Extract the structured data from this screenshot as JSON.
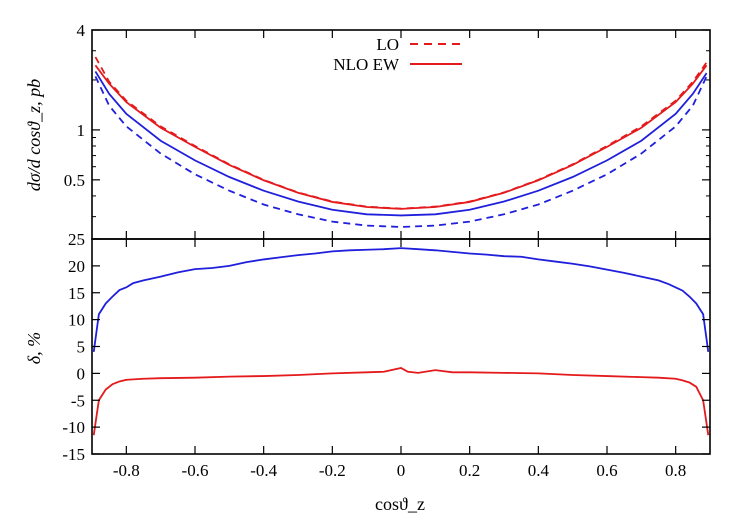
{
  "chart_data": [
    {
      "type": "line",
      "xlabel": "cosϑ_z",
      "ylabel": "dσ/d cosϑ_z, pb",
      "log_y": true,
      "xlim": [
        -0.9,
        0.9
      ],
      "ylim": [
        0.22,
        4
      ],
      "yticks": [
        {
          "v": 0.5,
          "label": "0.5"
        },
        {
          "v": 1,
          "label": "1"
        },
        {
          "v": 4,
          "label": "4"
        }
      ],
      "grid": false,
      "legend_position": "top-center",
      "legend": [
        {
          "label": "LO",
          "style": "dashed",
          "color": "#e41a1c"
        },
        {
          "label": "NLO EW",
          "style": "solid",
          "color": "#e41a1c"
        }
      ],
      "series": [
        {
          "color": "#e41a1c",
          "style": "dashed",
          "x": [
            -0.89,
            -0.85,
            -0.8,
            -0.7,
            -0.6,
            -0.5,
            -0.4,
            -0.3,
            -0.2,
            -0.1,
            0,
            0.1,
            0.2,
            0.3,
            0.4,
            0.5,
            0.6,
            0.7,
            0.8,
            0.85,
            0.89
          ],
          "y": [
            2.75,
            1.95,
            1.5,
            1.05,
            0.8,
            0.62,
            0.5,
            0.42,
            0.37,
            0.345,
            0.335,
            0.345,
            0.37,
            0.42,
            0.5,
            0.62,
            0.8,
            1.05,
            1.5,
            1.95,
            2.55
          ]
        },
        {
          "color": "#e41a1c",
          "style": "solid",
          "x": [
            -0.89,
            -0.85,
            -0.8,
            -0.7,
            -0.6,
            -0.5,
            -0.4,
            -0.3,
            -0.2,
            -0.1,
            0,
            0.1,
            0.2,
            0.3,
            0.4,
            0.5,
            0.6,
            0.7,
            0.8,
            0.85,
            0.89
          ],
          "y": [
            2.45,
            1.9,
            1.47,
            1.03,
            0.79,
            0.615,
            0.497,
            0.418,
            0.368,
            0.343,
            0.334,
            0.343,
            0.368,
            0.418,
            0.497,
            0.615,
            0.79,
            1.03,
            1.47,
            1.9,
            2.45
          ]
        },
        {
          "color": "#1f1fdc",
          "style": "dashed",
          "x": [
            -0.89,
            -0.85,
            -0.8,
            -0.7,
            -0.6,
            -0.5,
            -0.4,
            -0.3,
            -0.2,
            -0.1,
            0,
            0.1,
            0.2,
            0.3,
            0.4,
            0.5,
            0.6,
            0.7,
            0.8,
            0.85,
            0.89
          ],
          "y": [
            2.1,
            1.4,
            1.05,
            0.72,
            0.54,
            0.43,
            0.355,
            0.31,
            0.28,
            0.265,
            0.26,
            0.265,
            0.28,
            0.31,
            0.355,
            0.43,
            0.54,
            0.72,
            1.05,
            1.4,
            2.1
          ]
        },
        {
          "color": "#1f1fdc",
          "style": "solid",
          "x": [
            -0.89,
            -0.85,
            -0.8,
            -0.7,
            -0.6,
            -0.5,
            -0.4,
            -0.3,
            -0.2,
            -0.1,
            0,
            0.1,
            0.2,
            0.3,
            0.4,
            0.5,
            0.6,
            0.7,
            0.8,
            0.85,
            0.89
          ],
          "y": [
            2.25,
            1.65,
            1.25,
            0.86,
            0.655,
            0.52,
            0.43,
            0.37,
            0.33,
            0.31,
            0.305,
            0.31,
            0.33,
            0.37,
            0.43,
            0.52,
            0.655,
            0.86,
            1.25,
            1.65,
            2.2
          ]
        }
      ]
    },
    {
      "type": "line",
      "xlabel": "cosϑ_z",
      "ylabel": "δ, %",
      "xlim": [
        -0.9,
        0.9
      ],
      "ylim": [
        -15,
        25
      ],
      "xticks": [
        -0.8,
        -0.6,
        -0.4,
        -0.2,
        0,
        0.2,
        0.4,
        0.6,
        0.8
      ],
      "yticks": [
        -15,
        -10,
        -5,
        0,
        5,
        10,
        15,
        20,
        25
      ],
      "grid": false,
      "series": [
        {
          "color": "#1f1fdc",
          "style": "solid",
          "x": [
            -0.895,
            -0.88,
            -0.86,
            -0.84,
            -0.82,
            -0.8,
            -0.78,
            -0.75,
            -0.7,
            -0.65,
            -0.6,
            -0.55,
            -0.5,
            -0.45,
            -0.4,
            -0.35,
            -0.3,
            -0.25,
            -0.2,
            -0.15,
            -0.1,
            -0.05,
            0,
            0.05,
            0.1,
            0.15,
            0.2,
            0.25,
            0.3,
            0.35,
            0.4,
            0.45,
            0.5,
            0.55,
            0.6,
            0.65,
            0.7,
            0.75,
            0.78,
            0.8,
            0.82,
            0.84,
            0.86,
            0.88,
            0.895
          ],
          "y": [
            4,
            11,
            13,
            14.3,
            15.5,
            16,
            16.8,
            17.3,
            18,
            18.8,
            19.4,
            19.6,
            20,
            20.7,
            21.2,
            21.6,
            22,
            22.3,
            22.7,
            22.9,
            23,
            23.1,
            23.3,
            23.1,
            22.9,
            22.6,
            22.3,
            22.1,
            21.8,
            21.7,
            21.2,
            20.8,
            20.4,
            19.9,
            19.3,
            18.7,
            18,
            17.3,
            16.6,
            16,
            15.4,
            14.3,
            13,
            11,
            4
          ]
        },
        {
          "color": "#e41a1c",
          "style": "solid",
          "x": [
            -0.895,
            -0.88,
            -0.86,
            -0.84,
            -0.82,
            -0.8,
            -0.75,
            -0.7,
            -0.6,
            -0.5,
            -0.4,
            -0.3,
            -0.2,
            -0.1,
            -0.05,
            0,
            0.02,
            0.05,
            0.1,
            0.15,
            0.2,
            0.3,
            0.4,
            0.5,
            0.6,
            0.7,
            0.75,
            0.8,
            0.82,
            0.84,
            0.86,
            0.88,
            0.895
          ],
          "y": [
            -11.5,
            -5,
            -3,
            -2,
            -1.5,
            -1.2,
            -1,
            -0.9,
            -0.8,
            -0.6,
            -0.5,
            -0.3,
            0,
            0.2,
            0.3,
            1,
            0.3,
            0.1,
            0.6,
            0.2,
            0.2,
            0.1,
            0,
            -0.3,
            -0.5,
            -0.7,
            -0.8,
            -1,
            -1.3,
            -1.7,
            -2.5,
            -5,
            -11.5
          ]
        }
      ]
    }
  ]
}
